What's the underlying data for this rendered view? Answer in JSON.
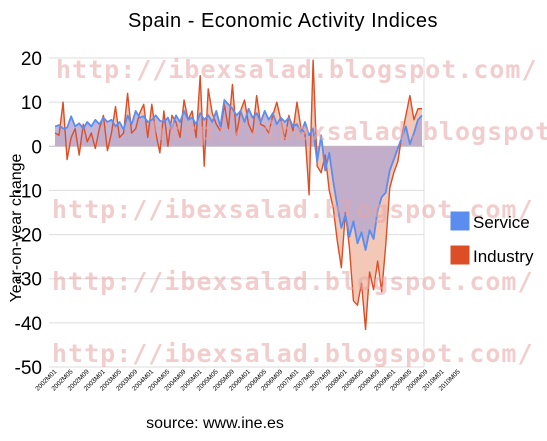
{
  "watermark": "http://ibexsalad.blogspot.com/",
  "source": "source: www.ine.es",
  "chart_data": {
    "type": "area",
    "title": "Spain - Economic Activity Indices",
    "ylabel": "Year-on-year change",
    "xlabel": "",
    "ylim": [
      -50,
      20
    ],
    "yticks": [
      20,
      10,
      0,
      -10,
      -20,
      -30,
      -40,
      -50
    ],
    "grid": true,
    "legend_position": "right",
    "x_tick_labels": [
      "2002M01",
      "2002M05",
      "2002M09",
      "2003M01",
      "2003M05",
      "2003M09",
      "2004M01",
      "2004M05",
      "2004M09",
      "2005M01",
      "2005M05",
      "2005M09",
      "2006M01",
      "2006M05",
      "2006M09",
      "2007M01",
      "2007M05",
      "2007M09",
      "2008M01",
      "2008M05",
      "2008M09",
      "2009M01",
      "2009M05",
      "2009M09",
      "2010M01",
      "2010M05"
    ],
    "x_start": "2002M01",
    "series": [
      {
        "name": "Service",
        "color": "#5b8def",
        "fill": "#b9a9cf",
        "values": [
          4.5,
          4.8,
          4.0,
          4.2,
          6.8,
          4.5,
          5.2,
          4.0,
          5.5,
          4.5,
          6.0,
          5.0,
          6.5,
          5.5,
          6.0,
          4.5,
          5.5,
          3.8,
          7.0,
          5.0,
          8.0,
          6.5,
          6.8,
          5.5,
          6.0,
          7.0,
          5.8,
          5.5,
          6.5,
          4.0,
          7.0,
          5.5,
          8.0,
          6.0,
          6.5,
          5.0,
          7.5,
          6.0,
          7.0,
          5.5,
          8.0,
          4.5,
          10.5,
          9.5,
          8.5,
          7.0,
          8.0,
          5.5,
          8.5,
          6.5,
          7.5,
          5.5,
          8.0,
          6.0,
          7.5,
          5.0,
          6.5,
          5.5,
          6.5,
          4.5,
          5.0,
          3.0,
          5.5,
          2.5,
          4.0,
          -3.5,
          2.5,
          -5.5,
          -1.5,
          -8.0,
          -13.5,
          -18.5,
          -15.5,
          -20.5,
          -17.0,
          -22.0,
          -19.5,
          -23.5,
          -19.0,
          -21.0,
          -14.5,
          -11.5,
          -10.5,
          -5.5,
          -3.0,
          -0.5,
          2.0,
          4.5,
          0.5,
          3.0,
          6.0,
          7.0
        ]
      },
      {
        "name": "Industry",
        "color": "#dc4e26",
        "fill": "#f2c2ae",
        "values": [
          3.0,
          2.5,
          10.0,
          -3.0,
          2.0,
          4.0,
          -2.0,
          5.0,
          1.0,
          3.0,
          -0.5,
          4.0,
          7.0,
          -1.0,
          3.0,
          9.0,
          2.0,
          3.0,
          12.0,
          3.0,
          4.0,
          7.5,
          9.5,
          2.0,
          9.5,
          3.0,
          -1.5,
          8.0,
          0.0,
          7.0,
          5.5,
          2.0,
          10.5,
          6.0,
          8.0,
          2.0,
          16.0,
          -4.5,
          13.0,
          7.5,
          5.0,
          3.5,
          9.5,
          4.0,
          14.0,
          2.5,
          8.0,
          10.5,
          5.0,
          3.0,
          11.5,
          5.0,
          4.5,
          3.0,
          7.0,
          10.0,
          6.0,
          1.5,
          7.0,
          3.5,
          10.0,
          4.0,
          3.0,
          -11.0,
          19.5,
          -4.5,
          -6.0,
          -2.0,
          -10.0,
          -14.0,
          -21.5,
          -27.5,
          -15.0,
          -23.0,
          -35.0,
          -36.0,
          -31.0,
          -41.5,
          -28.5,
          -32.5,
          -26.0,
          -33.0,
          -22.5,
          -9.5,
          -6.0,
          -3.5,
          2.5,
          7.0,
          11.5,
          6.0,
          8.5,
          8.5
        ]
      }
    ]
  }
}
